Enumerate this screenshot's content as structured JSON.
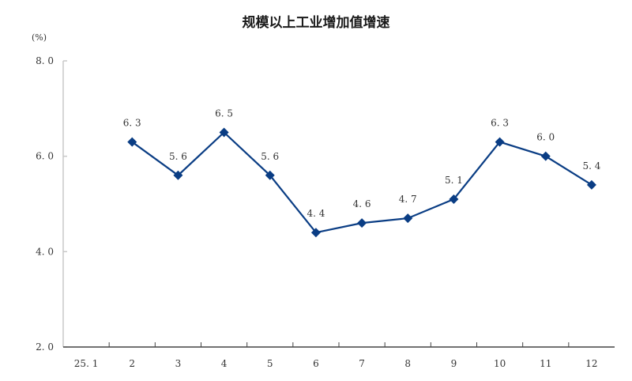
{
  "chart_data": {
    "type": "line",
    "title": "规模以上工业增加值增速",
    "unit": "(%)",
    "xlabel": "",
    "ylabel": "(%)",
    "ylim": [
      2.0,
      8.0
    ],
    "yticks": [
      "2.0",
      "4.0",
      "6.0",
      "8.0"
    ],
    "categories": [
      "25.1",
      "2",
      "3",
      "4",
      "5",
      "6",
      "7",
      "8",
      "9",
      "10",
      "11",
      "12"
    ],
    "series": [
      {
        "name": "规模以上工业增加值增速",
        "color": "#0a3d84",
        "marker": "diamond",
        "values": [
          null,
          6.3,
          5.6,
          6.5,
          5.6,
          4.4,
          4.6,
          4.7,
          5.1,
          6.3,
          6.0,
          5.4
        ],
        "labels": [
          "",
          "6.3",
          "5.6",
          "6.5",
          "5.6",
          "4.4",
          "4.6",
          "4.7",
          "5.1",
          "6.3",
          "6.0",
          "5.4"
        ]
      }
    ],
    "grid": false,
    "legend": "none"
  }
}
